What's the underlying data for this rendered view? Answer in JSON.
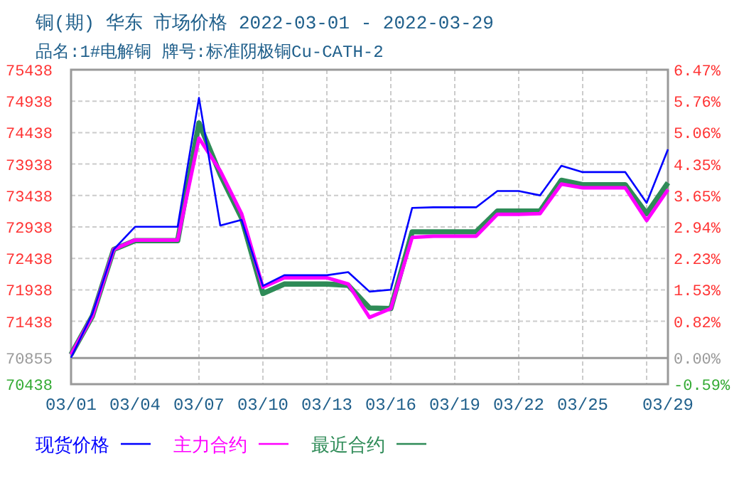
{
  "chart_data": {
    "type": "line",
    "title": "铜(期) 华东 市场价格 2022-03-01 - 2022-03-29",
    "subtitle": "品名:1#电解铜 牌号:标准阴极铜Cu-CATH-2",
    "x": [
      "2022-03-01",
      "2022-03-02",
      "2022-03-03",
      "2022-03-04",
      "2022-03-05",
      "2022-03-06",
      "2022-03-07",
      "2022-03-08",
      "2022-03-09",
      "2022-03-10",
      "2022-03-11",
      "2022-03-12",
      "2022-03-13",
      "2022-03-14",
      "2022-03-15",
      "2022-03-16",
      "2022-03-17",
      "2022-03-18",
      "2022-03-19",
      "2022-03-20",
      "2022-03-21",
      "2022-03-22",
      "2022-03-23",
      "2022-03-24",
      "2022-03-25",
      "2022-03-26",
      "2022-03-27",
      "2022-03-28",
      "2022-03-29"
    ],
    "series": [
      {
        "name": "现货价格",
        "color": "#0000ff",
        "values": [
          70860,
          71560,
          72580,
          72940,
          72940,
          72940,
          74990,
          72960,
          73050,
          72000,
          72170,
          72170,
          72170,
          72220,
          71910,
          71940,
          73240,
          73250,
          73250,
          73250,
          73510,
          73510,
          73440,
          73910,
          73810,
          73810,
          73810,
          73320,
          74170
        ]
      },
      {
        "name": "主力合约",
        "color": "#ff00ff",
        "values": [
          70910,
          71520,
          72580,
          72730,
          72730,
          72730,
          74350,
          73830,
          73150,
          71980,
          72130,
          72130,
          72130,
          72030,
          71500,
          71640,
          72770,
          72790,
          72790,
          72790,
          73140,
          73140,
          73150,
          73620,
          73560,
          73560,
          73560,
          73040,
          73530
        ]
      },
      {
        "name": "最近合约",
        "color": "#2e8b57",
        "values": [
          70910,
          71520,
          72580,
          72720,
          72720,
          72720,
          74590,
          73770,
          73080,
          71880,
          72030,
          72030,
          72030,
          72010,
          71650,
          71640,
          72860,
          72860,
          72860,
          72860,
          73190,
          73190,
          73190,
          73680,
          73610,
          73610,
          73610,
          73150,
          73640
        ]
      }
    ],
    "xlim": [
      "2022-03-01",
      "2022-03-29"
    ],
    "xticks": [
      {
        "value": "2022-03-01",
        "label": "03/01"
      },
      {
        "value": "2022-03-04",
        "label": "03/04"
      },
      {
        "value": "2022-03-07",
        "label": "03/07"
      },
      {
        "value": "2022-03-10",
        "label": "03/10"
      },
      {
        "value": "2022-03-13",
        "label": "03/13"
      },
      {
        "value": "2022-03-16",
        "label": "03/16"
      },
      {
        "value": "2022-03-19",
        "label": "03/19"
      },
      {
        "value": "2022-03-22",
        "label": "03/22"
      },
      {
        "value": "2022-03-25",
        "label": "03/25"
      },
      {
        "value": "2022-03-28",
        "label": null
      },
      {
        "value": "2022-03-29",
        "label": "03/29"
      }
    ],
    "ylim": [
      70438,
      75438
    ],
    "yticks": [
      70438,
      70855,
      71438,
      71938,
      72438,
      72938,
      73438,
      73938,
      74438,
      74938,
      75438
    ],
    "y2lim": [
      -0.59,
      6.47
    ],
    "y2ticks": [
      {
        "value": -0.59,
        "label": "-0.59%"
      },
      {
        "value": 0,
        "label": "0.00%"
      },
      {
        "value": 0.82,
        "label": "0.82%"
      },
      {
        "value": 1.53,
        "label": "1.53%"
      },
      {
        "value": 2.23,
        "label": "2.23%"
      },
      {
        "value": 2.94,
        "label": "2.94%"
      },
      {
        "value": 3.65,
        "label": "3.65%"
      },
      {
        "value": 4.35,
        "label": "4.35%"
      },
      {
        "value": 5.06,
        "label": "5.06%"
      },
      {
        "value": 5.76,
        "label": "5.76%"
      },
      {
        "value": 6.47,
        "label": "6.47%"
      }
    ],
    "ref_lines": [
      {
        "axis": "y",
        "value": 70855,
        "color": "#999999"
      }
    ],
    "grid": true,
    "legend": "bottom"
  }
}
